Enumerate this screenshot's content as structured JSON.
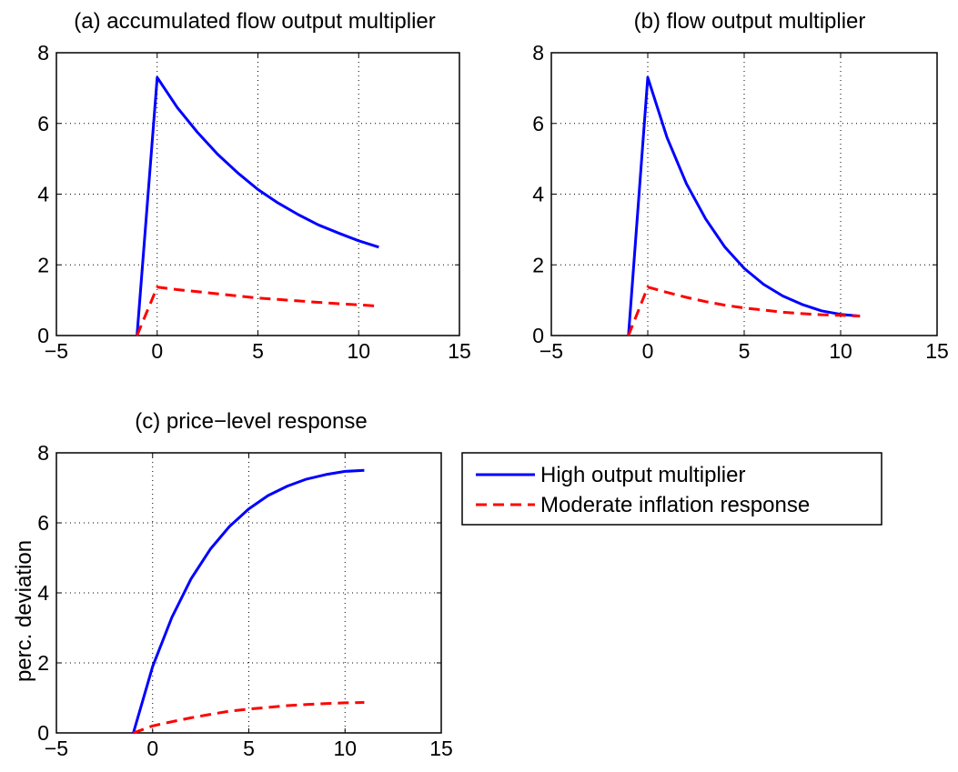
{
  "chart_data": [
    {
      "type": "line",
      "title": "(a) accumulated flow output multiplier",
      "xlabel": "",
      "ylabel": "",
      "xlim": [
        -5,
        15
      ],
      "ylim": [
        0,
        8
      ],
      "xticks": [
        -5,
        0,
        5,
        10,
        15
      ],
      "yticks": [
        0,
        2,
        4,
        6,
        8
      ],
      "xtick_labels": [
        "−5",
        "0",
        "5",
        "10",
        "15"
      ],
      "ytick_labels": [
        "0",
        "2",
        "4",
        "6",
        "8"
      ],
      "grid": true,
      "x": [
        -1,
        0,
        1,
        2,
        3,
        4,
        5,
        6,
        7,
        8,
        9,
        10,
        11
      ],
      "series": [
        {
          "name": "High output multiplier",
          "color": "#0000ff",
          "style": "solid",
          "values": [
            0,
            7.3,
            6.45,
            5.75,
            5.13,
            4.6,
            4.13,
            3.75,
            3.42,
            3.13,
            2.9,
            2.68,
            2.5
          ]
        },
        {
          "name": "Moderate inflation response",
          "color": "#ff0000",
          "style": "dashed",
          "values": [
            0,
            1.37,
            1.3,
            1.24,
            1.18,
            1.12,
            1.06,
            1.02,
            0.98,
            0.94,
            0.9,
            0.87,
            0.83
          ]
        }
      ]
    },
    {
      "type": "line",
      "title": "(b) flow output multiplier",
      "xlabel": "",
      "ylabel": "",
      "xlim": [
        -5,
        15
      ],
      "ylim": [
        0,
        8
      ],
      "xticks": [
        -5,
        0,
        5,
        10,
        15
      ],
      "yticks": [
        0,
        2,
        4,
        6,
        8
      ],
      "xtick_labels": [
        "−5",
        "0",
        "5",
        "10",
        "15"
      ],
      "ytick_labels": [
        "0",
        "2",
        "4",
        "6",
        "8"
      ],
      "grid": true,
      "x": [
        -1,
        0,
        1,
        2,
        3,
        4,
        5,
        6,
        7,
        8,
        9,
        10,
        11
      ],
      "series": [
        {
          "name": "High output multiplier",
          "color": "#0000ff",
          "style": "solid",
          "values": [
            0,
            7.3,
            5.6,
            4.3,
            3.3,
            2.5,
            1.9,
            1.45,
            1.12,
            0.88,
            0.7,
            0.6,
            0.55
          ]
        },
        {
          "name": "Moderate inflation response",
          "color": "#ff0000",
          "style": "dashed",
          "values": [
            0,
            1.37,
            1.22,
            1.08,
            0.96,
            0.86,
            0.78,
            0.72,
            0.66,
            0.62,
            0.59,
            0.57,
            0.55
          ]
        }
      ]
    },
    {
      "type": "line",
      "title": "(c) price−level response",
      "xlabel": "",
      "ylabel": "perc. deviation",
      "xlim": [
        -5,
        15
      ],
      "ylim": [
        0,
        8
      ],
      "xticks": [
        -5,
        0,
        5,
        10,
        15
      ],
      "yticks": [
        0,
        2,
        4,
        6,
        8
      ],
      "xtick_labels": [
        "−5",
        "0",
        "5",
        "10",
        "15"
      ],
      "ytick_labels": [
        "0",
        "2",
        "4",
        "6",
        "8"
      ],
      "grid": true,
      "x": [
        -1,
        0,
        1,
        2,
        3,
        4,
        5,
        6,
        7,
        8,
        9,
        10,
        11
      ],
      "series": [
        {
          "name": "High output multiplier",
          "color": "#0000ff",
          "style": "solid",
          "values": [
            0,
            1.9,
            3.3,
            4.4,
            5.25,
            5.9,
            6.4,
            6.78,
            7.05,
            7.25,
            7.38,
            7.47,
            7.5
          ]
        },
        {
          "name": "Moderate inflation response",
          "color": "#ff0000",
          "style": "dashed",
          "values": [
            0,
            0.2,
            0.32,
            0.43,
            0.53,
            0.62,
            0.68,
            0.73,
            0.78,
            0.81,
            0.84,
            0.86,
            0.87
          ]
        }
      ]
    }
  ],
  "legend": {
    "placement": "right of panel (c)",
    "entries": [
      {
        "label": "High output multiplier",
        "color": "#0000ff",
        "style": "solid"
      },
      {
        "label": "Moderate inflation response",
        "color": "#ff0000",
        "style": "dashed"
      }
    ]
  }
}
